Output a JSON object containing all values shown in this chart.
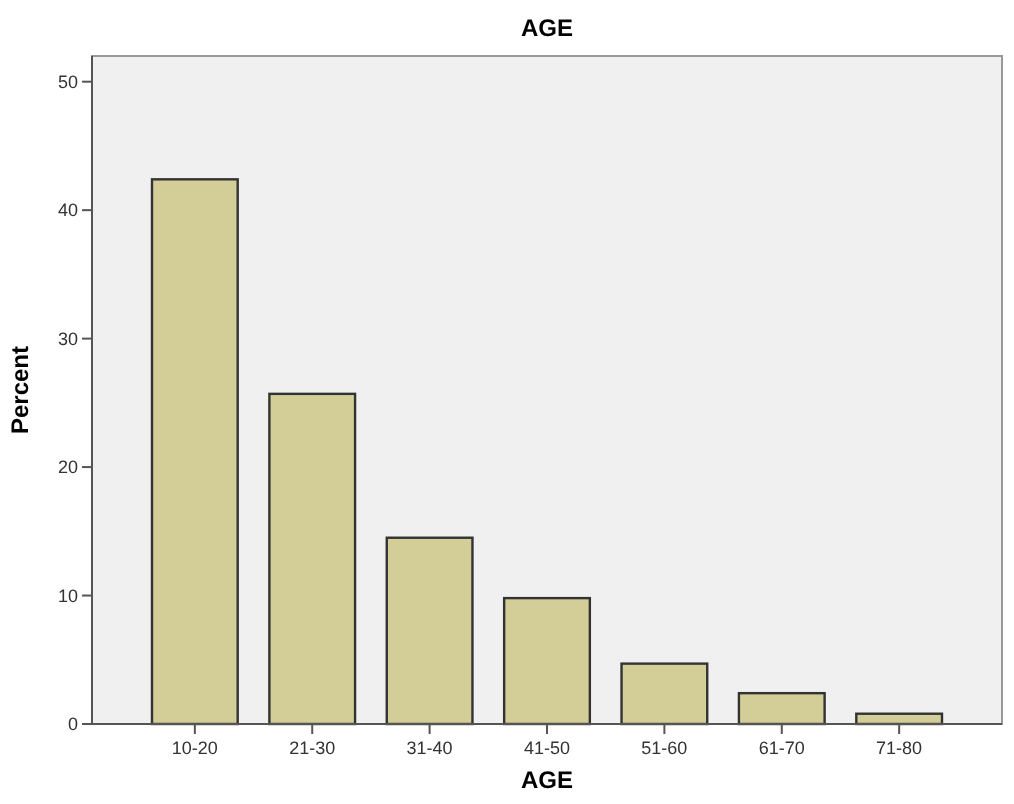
{
  "chart_data": {
    "type": "bar",
    "title": "AGE",
    "xlabel": "AGE",
    "ylabel": "Percent",
    "categories": [
      "10-20",
      "21-30",
      "31-40",
      "41-50",
      "51-60",
      "61-70",
      "71-80"
    ],
    "values": [
      42.4,
      25.7,
      14.5,
      9.8,
      4.7,
      2.4,
      0.8
    ],
    "color": "#d3ce97",
    "ylim": [
      0,
      52
    ],
    "yticks": [
      0,
      10,
      20,
      30,
      40,
      50
    ],
    "grid": false
  }
}
